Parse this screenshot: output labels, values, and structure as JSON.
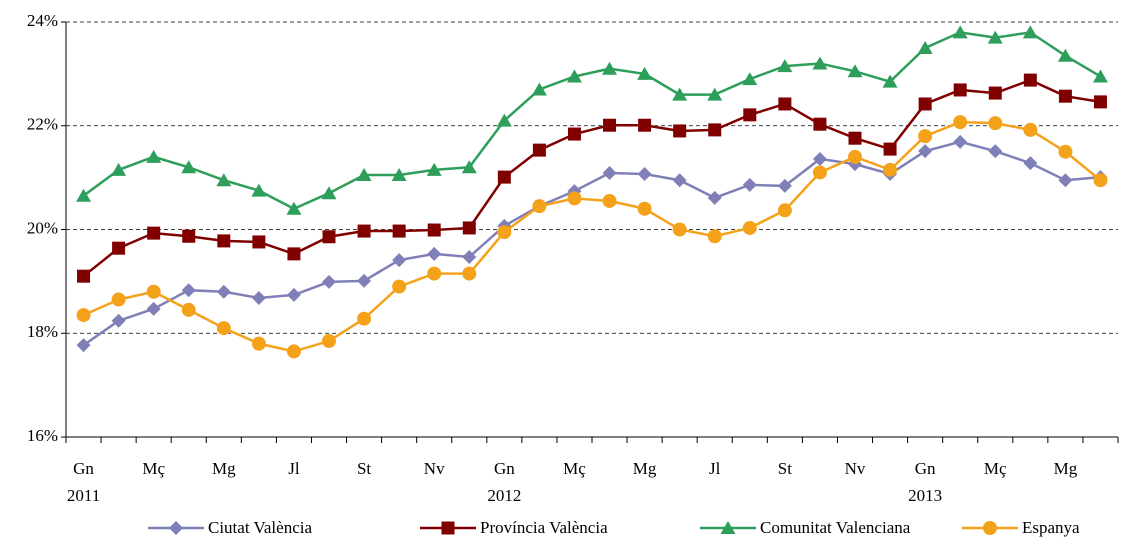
{
  "chart_data": {
    "type": "line",
    "categories": [
      "Gn",
      null,
      "Mç",
      null,
      "Mg",
      null,
      "Jl",
      null,
      "St",
      null,
      "Nv",
      null,
      "Gn",
      null,
      "Mç",
      null,
      "Mg",
      null,
      "Jl",
      null,
      "St",
      null,
      "Nv",
      null,
      "Gn",
      null,
      "Mç",
      null,
      "Mg",
      null
    ],
    "years": [
      "2011",
      "2012",
      "2013"
    ],
    "ylim": [
      16,
      24
    ],
    "yticks": [
      {
        "value": 16,
        "label": "16%"
      },
      {
        "value": 18,
        "label": "18%"
      },
      {
        "value": 20,
        "label": "20%"
      },
      {
        "value": 22,
        "label": "22%"
      },
      {
        "value": 24,
        "label": "24%"
      }
    ],
    "grid": true,
    "legend": "bottom",
    "series": [
      {
        "name": "Ciutat València",
        "color": "#8080b8",
        "marker": "diamond",
        "values": [
          17.77,
          18.24,
          18.47,
          18.83,
          18.8,
          18.68,
          18.74,
          18.99,
          19.01,
          19.41,
          19.53,
          19.47,
          20.07,
          20.45,
          20.74,
          21.09,
          21.07,
          20.95,
          20.61,
          20.86,
          20.84,
          21.36,
          21.26,
          21.07,
          21.51,
          21.69,
          21.51,
          21.28,
          20.95,
          21.01
        ]
      },
      {
        "name": "Província València",
        "color": "#800000",
        "marker": "square",
        "values": [
          19.1,
          19.64,
          19.93,
          19.87,
          19.78,
          19.76,
          19.53,
          19.86,
          19.97,
          19.97,
          19.99,
          20.03,
          21.01,
          21.53,
          21.84,
          22.01,
          22.01,
          21.9,
          21.92,
          22.21,
          22.42,
          22.03,
          21.76,
          21.55,
          22.42,
          22.69,
          22.63,
          22.88,
          22.57,
          22.46
        ]
      },
      {
        "name": "Comunitat Valenciana",
        "color": "#2e9e5b",
        "marker": "triangle",
        "values": [
          20.65,
          21.15,
          21.4,
          21.2,
          20.95,
          20.75,
          20.4,
          20.7,
          21.05,
          21.05,
          21.15,
          21.2,
          22.1,
          22.7,
          22.95,
          23.1,
          23.0,
          22.6,
          22.6,
          22.9,
          23.15,
          23.2,
          23.05,
          22.85,
          23.5,
          23.8,
          23.7,
          23.8,
          23.35,
          22.95
        ]
      },
      {
        "name": "Espanya",
        "color": "#f5a21b",
        "marker": "circle",
        "values": [
          18.35,
          18.65,
          18.8,
          18.45,
          18.1,
          17.8,
          17.65,
          17.85,
          18.28,
          18.9,
          19.15,
          19.15,
          19.95,
          20.45,
          20.6,
          20.55,
          20.4,
          20.0,
          19.87,
          20.03,
          20.37,
          21.1,
          21.4,
          21.15,
          21.8,
          22.07,
          22.05,
          21.92,
          21.5,
          20.95
        ]
      }
    ]
  }
}
